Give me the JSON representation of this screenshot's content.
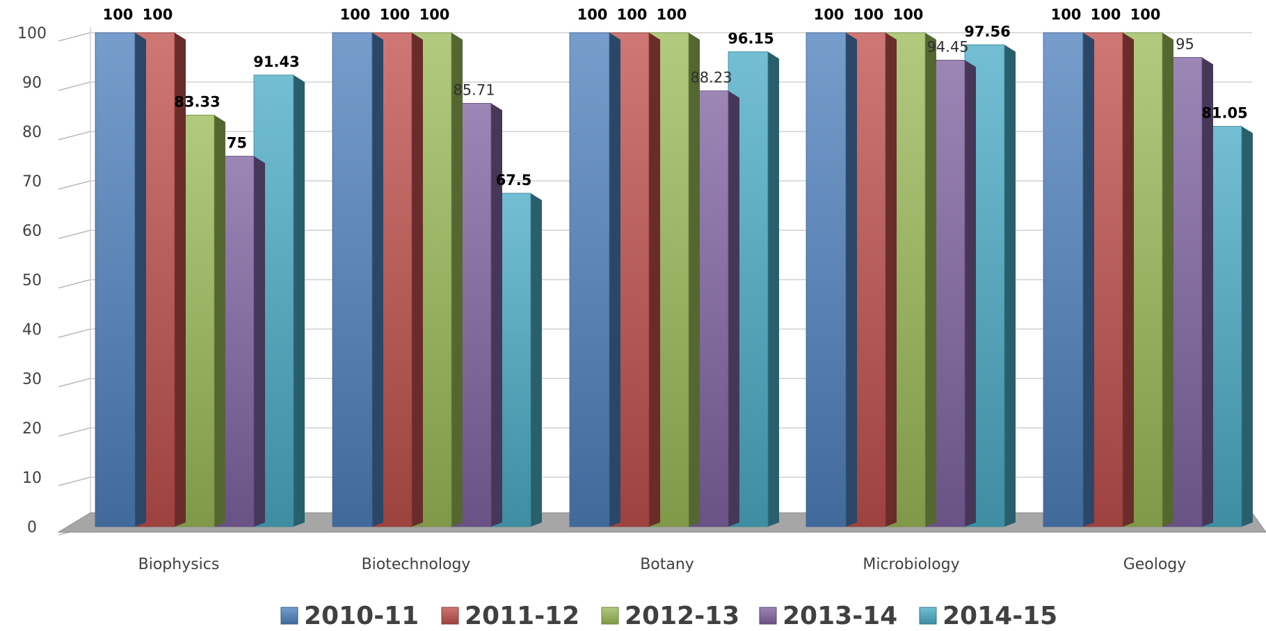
{
  "chart_data": {
    "type": "bar",
    "style": "3d-clustered-column",
    "categories": [
      "Biophysics",
      "Biotechnology",
      "Botany",
      "Microbiology",
      "Geology"
    ],
    "series": [
      {
        "name": "2010-11",
        "color": "#4F81BD",
        "values": [
          100,
          100,
          100,
          100,
          100
        ]
      },
      {
        "name": "2011-12",
        "color": "#C0504D",
        "values": [
          100,
          100,
          100,
          100,
          100
        ]
      },
      {
        "name": "2012-13",
        "color": "#9BBB59",
        "values": [
          83.33,
          100,
          100,
          100,
          100
        ]
      },
      {
        "name": "2013-14",
        "color": "#8064A2",
        "values": [
          75,
          85.71,
          88.23,
          94.45,
          95
        ]
      },
      {
        "name": "2014-15",
        "color": "#4BACC6",
        "values": [
          91.43,
          67.5,
          96.15,
          97.56,
          81.05
        ]
      }
    ],
    "data_labels": [
      [
        "100",
        "100",
        "83.33",
        "75",
        "91.43"
      ],
      [
        "100",
        "100",
        "100",
        "85.71",
        "67.5"
      ],
      [
        "100",
        "100",
        "100",
        "88.23",
        "96.15"
      ],
      [
        "100",
        "100",
        "100",
        "94.45",
        "97.56"
      ],
      [
        "100",
        "100",
        "100",
        "95",
        "81.05"
      ]
    ],
    "bold_labels": [
      [
        true,
        true,
        true,
        true,
        true
      ],
      [
        true,
        true,
        true,
        false,
        true
      ],
      [
        true,
        true,
        true,
        false,
        true
      ],
      [
        true,
        true,
        true,
        false,
        true
      ],
      [
        true,
        true,
        true,
        false,
        true
      ]
    ],
    "yticks": [
      "0",
      "10",
      "20",
      "30",
      "40",
      "50",
      "60",
      "70",
      "80",
      "90",
      "100"
    ],
    "ylim": [
      0,
      100
    ],
    "grid": true,
    "legend_position": "bottom",
    "title": "",
    "xlabel": "",
    "ylabel": ""
  }
}
